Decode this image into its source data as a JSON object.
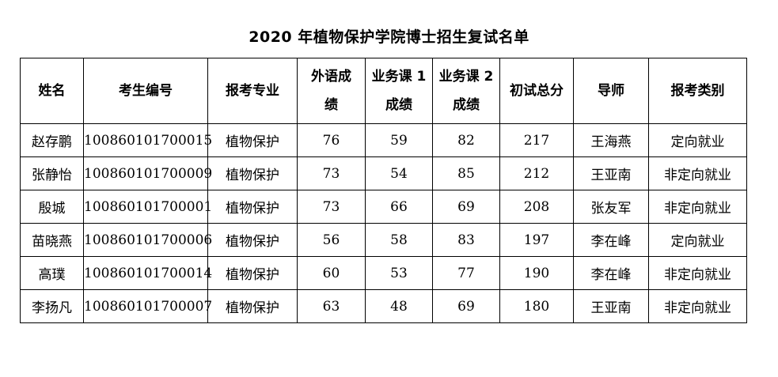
{
  "title": "2020 年植物保护学院博士招生复试名单",
  "columns": [
    {
      "lines": [
        "姓名"
      ]
    },
    {
      "lines": [
        "考生编号"
      ]
    },
    {
      "lines": [
        "报考专业"
      ]
    },
    {
      "lines": [
        "外语成",
        "绩"
      ]
    },
    {
      "lines": [
        "业务课 1",
        "成绩"
      ]
    },
    {
      "lines": [
        "业务课 2",
        "成绩"
      ]
    },
    {
      "lines": [
        "初试总分"
      ]
    },
    {
      "lines": [
        "导师"
      ]
    },
    {
      "lines": [
        "报考类别"
      ]
    }
  ],
  "rows": [
    [
      "赵存鹏",
      "100860101700015",
      "植物保护",
      "76",
      "59",
      "82",
      "217",
      "王海燕",
      "定向就业"
    ],
    [
      "张静怡",
      "100860101700009",
      "植物保护",
      "73",
      "54",
      "85",
      "212",
      "王亚南",
      "非定向就业"
    ],
    [
      "殷城",
      "100860101700001",
      "植物保护",
      "73",
      "66",
      "69",
      "208",
      "张友军",
      "非定向就业"
    ],
    [
      "苗晓燕",
      "100860101700006",
      "植物保护",
      "56",
      "58",
      "83",
      "197",
      "李在峰",
      "定向就业"
    ],
    [
      "高璞",
      "100860101700014",
      "植物保护",
      "60",
      "53",
      "77",
      "190",
      "李在峰",
      "非定向就业"
    ],
    [
      "李扬凡",
      "100860101700007",
      "植物保护",
      "63",
      "48",
      "69",
      "180",
      "王亚南",
      "非定向就业"
    ]
  ]
}
